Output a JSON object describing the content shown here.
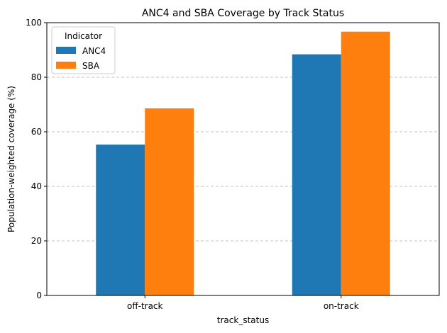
{
  "chart_data": {
    "type": "bar",
    "title": "ANC4 and SBA Coverage by Track Status",
    "xlabel": "track_status",
    "ylabel": "Population-weighted coverage (%)",
    "categories": [
      "off-track",
      "on-track"
    ],
    "series": [
      {
        "name": "ANC4",
        "values": [
          55.3,
          88.4
        ],
        "color": "#1f77b4"
      },
      {
        "name": "SBA",
        "values": [
          68.6,
          96.7
        ],
        "color": "#ff7f0e"
      }
    ],
    "ylim": [
      0,
      100
    ],
    "yticks": [
      0,
      20,
      40,
      60,
      80,
      100
    ],
    "grid": "y-dashed",
    "legend": {
      "title": "Indicator",
      "placement": "top-left"
    }
  }
}
